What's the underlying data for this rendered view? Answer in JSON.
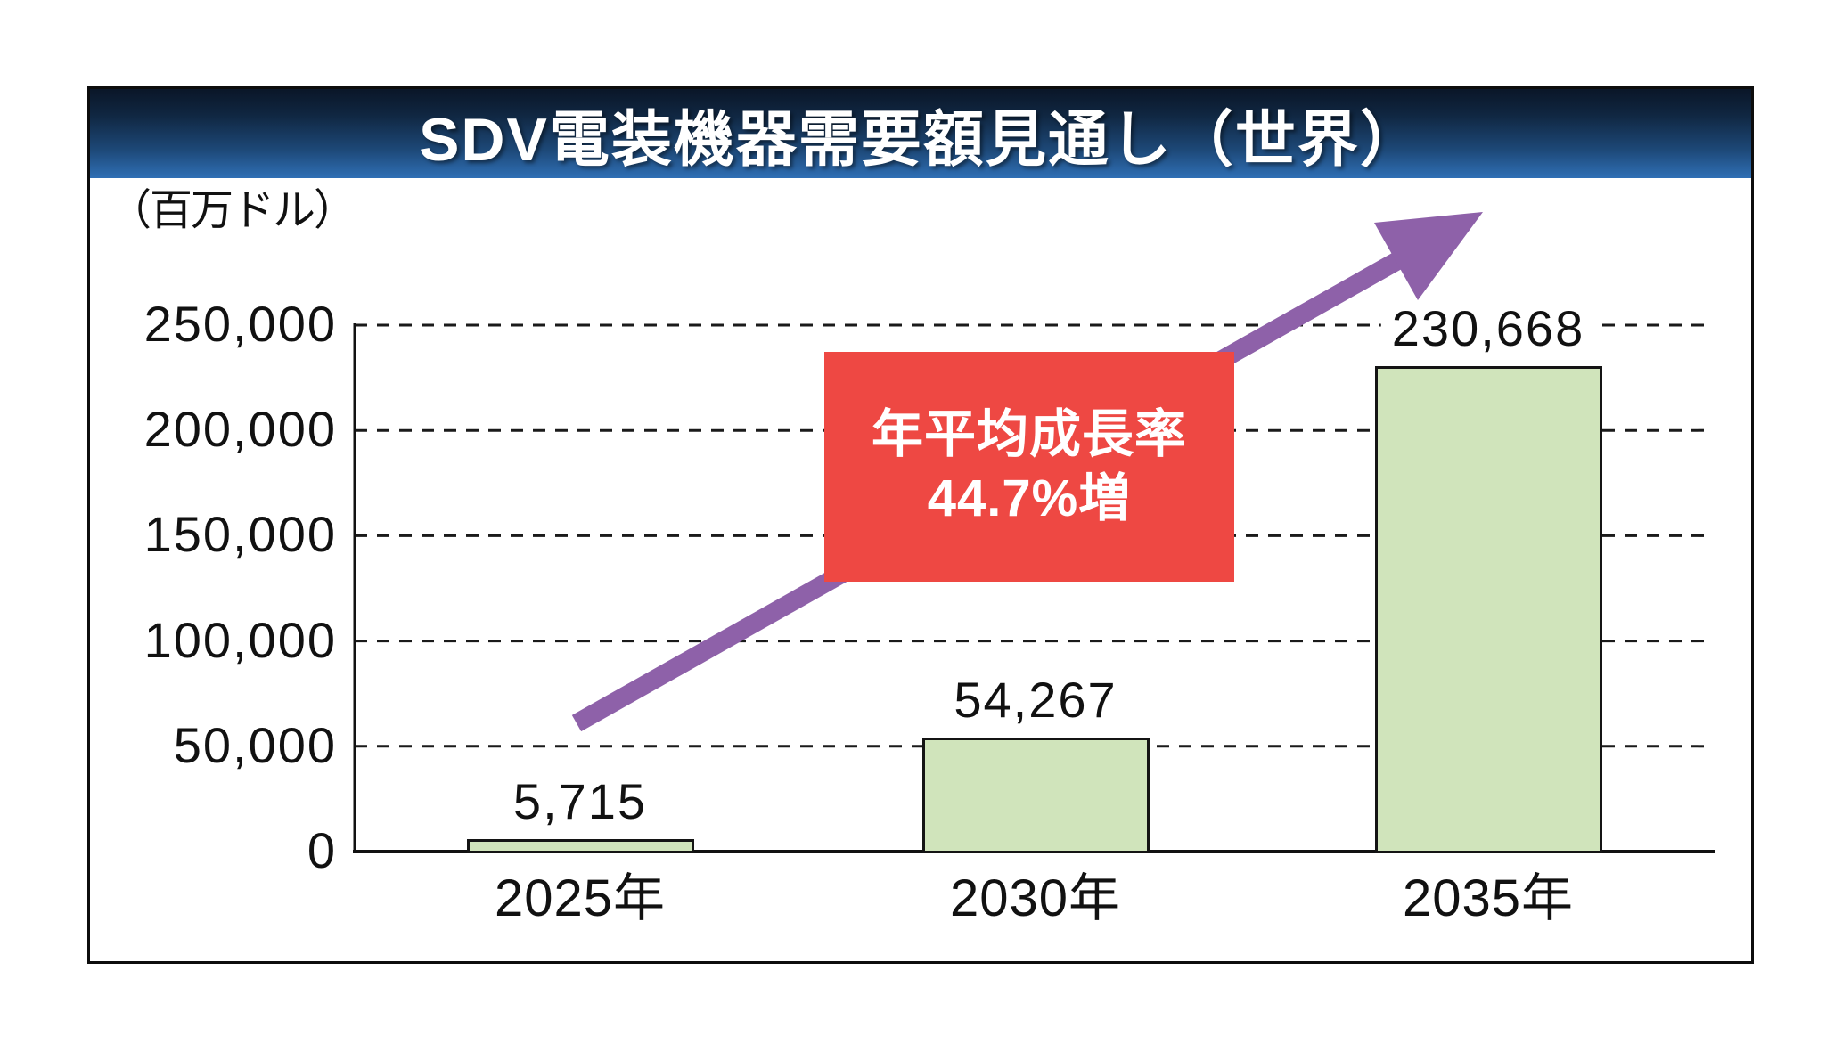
{
  "title": "SDV電装機器需要額見通し（世界）",
  "unit_label": "（百万ドル）",
  "annotation": {
    "line1": "年平均成長率",
    "line2": "44.7%増"
  },
  "chart_data": {
    "type": "bar",
    "title": "SDV電装機器需要額見通し（世界）",
    "ylabel": "（百万ドル）",
    "xlabel": "",
    "categories": [
      "2025年",
      "2030年",
      "2035年"
    ],
    "values": [
      5715,
      54267,
      230668
    ],
    "value_labels": [
      "5,715",
      "54,267",
      "230,668"
    ],
    "ylim": [
      0,
      250000
    ],
    "yticks": [
      0,
      50000,
      100000,
      150000,
      200000,
      250000
    ],
    "ytick_labels": [
      "0",
      "50,000",
      "100,000",
      "150,000",
      "200,000",
      "250,000"
    ],
    "grid": "horizontal-dashed",
    "legend": "none",
    "annotation_text": "年平均成長率 44.7%増",
    "annotation_meaning": "compound annual growth rate +44.7%"
  },
  "colors": {
    "bar_fill": "#d0e4bb",
    "bar_border": "#141414",
    "annotation_bg": "#ee4843",
    "annotation_text": "#ffffff",
    "arrow": "#8e61a9",
    "title_text": "#ffffff",
    "title_gradient_top": "#0a1628",
    "title_gradient_bottom": "#2f6fb5",
    "gridline": "#1a1a1a",
    "frame_border": "#0d0d0d",
    "background": "#ffffff"
  }
}
